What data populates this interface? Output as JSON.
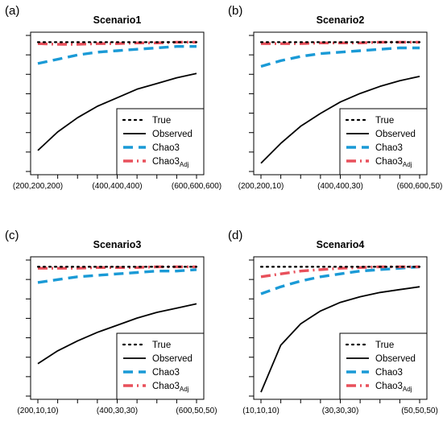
{
  "colors": {
    "true": "#000000",
    "observed": "#000000",
    "chao3": "#1a9ad6",
    "chao3adj": "#e8505b",
    "axis": "#000000",
    "background": "#ffffff"
  },
  "legend": {
    "placement": "bottom-right",
    "entries": [
      {
        "key": "true",
        "label": "True",
        "style": "dotted"
      },
      {
        "key": "observed",
        "label": "Observed",
        "style": "solid"
      },
      {
        "key": "chao3",
        "label": "Chao3",
        "style": "dashed"
      },
      {
        "key": "chao3adj",
        "label": "Chao3",
        "subscript": "Adj",
        "style": "dashdot"
      }
    ]
  },
  "chart_data": [
    {
      "panel_label": "(a)",
      "type": "line",
      "title": "Scenario1",
      "xlabel": "",
      "ylabel": "",
      "ylim": [
        0,
        1
      ],
      "grid": false,
      "x": [
        1,
        2,
        3,
        4,
        5,
        6,
        7,
        8,
        9
      ],
      "xtick_positions": [
        1,
        2,
        3,
        4,
        5,
        6,
        7,
        8,
        9
      ],
      "xtick_labels": [
        "(200,200,200)",
        "",
        "",
        "",
        "(400,400,400)",
        "",
        "",
        "",
        "(600,600,600)"
      ],
      "series": [
        {
          "key": "true",
          "name": "True",
          "values": [
            0.93,
            0.93,
            0.93,
            0.93,
            0.93,
            0.93,
            0.93,
            0.93,
            0.93
          ]
        },
        {
          "key": "observed",
          "name": "Observed",
          "values": [
            0.17,
            0.3,
            0.4,
            0.48,
            0.54,
            0.6,
            0.64,
            0.68,
            0.71
          ]
        },
        {
          "key": "chao3",
          "name": "Chao3",
          "values": [
            0.78,
            0.81,
            0.84,
            0.86,
            0.87,
            0.88,
            0.89,
            0.9,
            0.9
          ]
        },
        {
          "key": "chao3adj",
          "name": "Chao3Adj",
          "values": [
            0.92,
            0.915,
            0.915,
            0.92,
            0.92,
            0.925,
            0.925,
            0.93,
            0.93
          ]
        }
      ]
    },
    {
      "panel_label": "(b)",
      "type": "line",
      "title": "Scenario2",
      "xlabel": "",
      "ylabel": "",
      "ylim": [
        0,
        1
      ],
      "grid": false,
      "x": [
        1,
        2,
        3,
        4,
        5,
        6,
        7,
        8,
        9
      ],
      "xtick_positions": [
        1,
        2,
        3,
        4,
        5,
        6,
        7,
        8,
        9
      ],
      "xtick_labels": [
        "(200,200,10)",
        "",
        "",
        "",
        "(400,400,30)",
        "",
        "",
        "",
        "(600,600,50)"
      ],
      "series": [
        {
          "key": "true",
          "name": "True",
          "values": [
            0.93,
            0.93,
            0.93,
            0.93,
            0.93,
            0.93,
            0.93,
            0.93,
            0.93
          ]
        },
        {
          "key": "observed",
          "name": "Observed",
          "values": [
            0.08,
            0.22,
            0.34,
            0.43,
            0.51,
            0.57,
            0.62,
            0.66,
            0.69
          ]
        },
        {
          "key": "chao3",
          "name": "Chao3",
          "values": [
            0.76,
            0.8,
            0.83,
            0.85,
            0.86,
            0.87,
            0.88,
            0.89,
            0.89
          ]
        },
        {
          "key": "chao3adj",
          "name": "Chao3Adj",
          "values": [
            0.92,
            0.92,
            0.92,
            0.925,
            0.925,
            0.925,
            0.93,
            0.93,
            0.93
          ]
        }
      ]
    },
    {
      "panel_label": "(c)",
      "type": "line",
      "title": "Scenario3",
      "xlabel": "",
      "ylabel": "",
      "ylim": [
        0,
        1
      ],
      "grid": false,
      "x": [
        1,
        2,
        3,
        4,
        5,
        6,
        7,
        8,
        9
      ],
      "xtick_positions": [
        1,
        2,
        3,
        4,
        5,
        6,
        7,
        8,
        9
      ],
      "xtick_labels": [
        "(200,10,10)",
        "",
        "",
        "",
        "(400,30,30)",
        "",
        "",
        "",
        "(600,50,50)"
      ],
      "series": [
        {
          "key": "true",
          "name": "True",
          "values": [
            0.93,
            0.93,
            0.93,
            0.93,
            0.93,
            0.93,
            0.93,
            0.93,
            0.93
          ]
        },
        {
          "key": "observed",
          "name": "Observed",
          "values": [
            0.25,
            0.34,
            0.41,
            0.47,
            0.52,
            0.57,
            0.61,
            0.64,
            0.67
          ]
        },
        {
          "key": "chao3",
          "name": "Chao3",
          "values": [
            0.82,
            0.84,
            0.86,
            0.87,
            0.88,
            0.89,
            0.9,
            0.9,
            0.91
          ]
        },
        {
          "key": "chao3adj",
          "name": "Chao3Adj",
          "values": [
            0.92,
            0.92,
            0.92,
            0.925,
            0.925,
            0.925,
            0.93,
            0.93,
            0.93
          ]
        }
      ]
    },
    {
      "panel_label": "(d)",
      "type": "line",
      "title": "Scenario4",
      "xlabel": "",
      "ylabel": "",
      "ylim": [
        0,
        1
      ],
      "grid": false,
      "x": [
        1,
        2,
        3,
        4,
        5,
        6,
        7,
        8,
        9
      ],
      "xtick_positions": [
        1,
        2,
        3,
        4,
        5,
        6,
        7,
        8,
        9
      ],
      "xtick_labels": [
        "(10,10,10)",
        "",
        "",
        "",
        "(30,30,30)",
        "",
        "",
        "",
        "(50,50,50)"
      ],
      "series": [
        {
          "key": "true",
          "name": "True",
          "values": [
            0.93,
            0.93,
            0.93,
            0.93,
            0.93,
            0.93,
            0.93,
            0.93,
            0.93
          ]
        },
        {
          "key": "observed",
          "name": "Observed",
          "values": [
            0.05,
            0.38,
            0.53,
            0.62,
            0.68,
            0.72,
            0.75,
            0.77,
            0.79
          ]
        },
        {
          "key": "chao3",
          "name": "Chao3",
          "values": [
            0.74,
            0.79,
            0.83,
            0.86,
            0.88,
            0.9,
            0.91,
            0.92,
            0.93
          ]
        },
        {
          "key": "chao3adj",
          "name": "Chao3Adj",
          "values": [
            0.86,
            0.88,
            0.9,
            0.91,
            0.92,
            0.925,
            0.93,
            0.93,
            0.93
          ]
        }
      ]
    }
  ]
}
